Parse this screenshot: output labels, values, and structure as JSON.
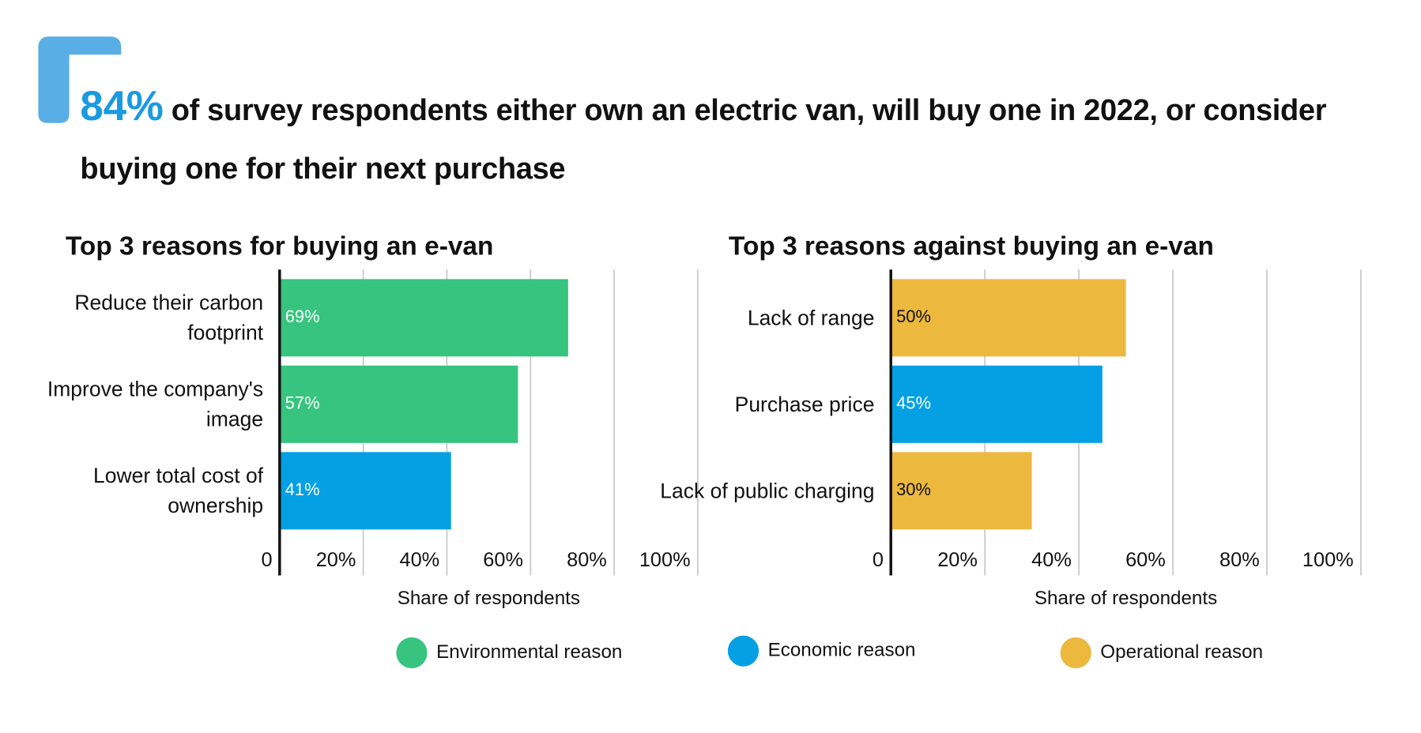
{
  "headline": {
    "highlight": "84%",
    "text": "of survey respondents either own an electric van, will buy one in 2022, or consider buying one for their next purchase"
  },
  "chart_data": [
    {
      "type": "hbar",
      "title": "Top 3 reasons for buying an e-van",
      "categories": [
        "Reduce their carbon footprint",
        "Improve the company's image",
        "Lower total cost of ownership"
      ],
      "values": [
        69,
        57,
        41
      ],
      "value_labels": [
        "69%",
        "57%",
        "41%"
      ],
      "colors": [
        "#36c47e",
        "#36c47e",
        "#05a0e4"
      ],
      "xlim": [
        0,
        100
      ],
      "xticks": [
        0,
        {
          "value": 20,
          "label": "20%"
        },
        {
          "value": 40,
          "label": "40%"
        },
        {
          "value": 60,
          "label": "60%"
        },
        {
          "value": 80,
          "label": "80%"
        },
        {
          "value": 100,
          "label": "100%"
        }
      ],
      "xlabel": "Share of respondents",
      "grid": true
    },
    {
      "type": "hbar",
      "title": "Top 3 reasons against buying an e-van",
      "categories": [
        "Lack of range",
        "Purchase price",
        "Lack of public charging"
      ],
      "values": [
        50,
        45,
        30
      ],
      "value_labels": [
        "50%",
        "45%",
        "30%"
      ],
      "colors": [
        "#ecb83e",
        "#05a0e4",
        "#ecb83e"
      ],
      "xlim": [
        0,
        100
      ],
      "xticks": [
        0,
        {
          "value": 20,
          "label": "20%"
        },
        {
          "value": 40,
          "label": "40%"
        },
        {
          "value": 60,
          "label": "60%"
        },
        {
          "value": 80,
          "label": "80%"
        },
        {
          "value": 100,
          "label": "100%"
        }
      ],
      "xlabel": "Share of respondents",
      "grid": true
    }
  ],
  "legend": [
    {
      "name": "Environmental reason",
      "color": "#36c47e"
    },
    {
      "name": "Economic reason",
      "color": "#05a0e4"
    },
    {
      "name": "Operational reason",
      "color": "#ecb83e"
    }
  ]
}
